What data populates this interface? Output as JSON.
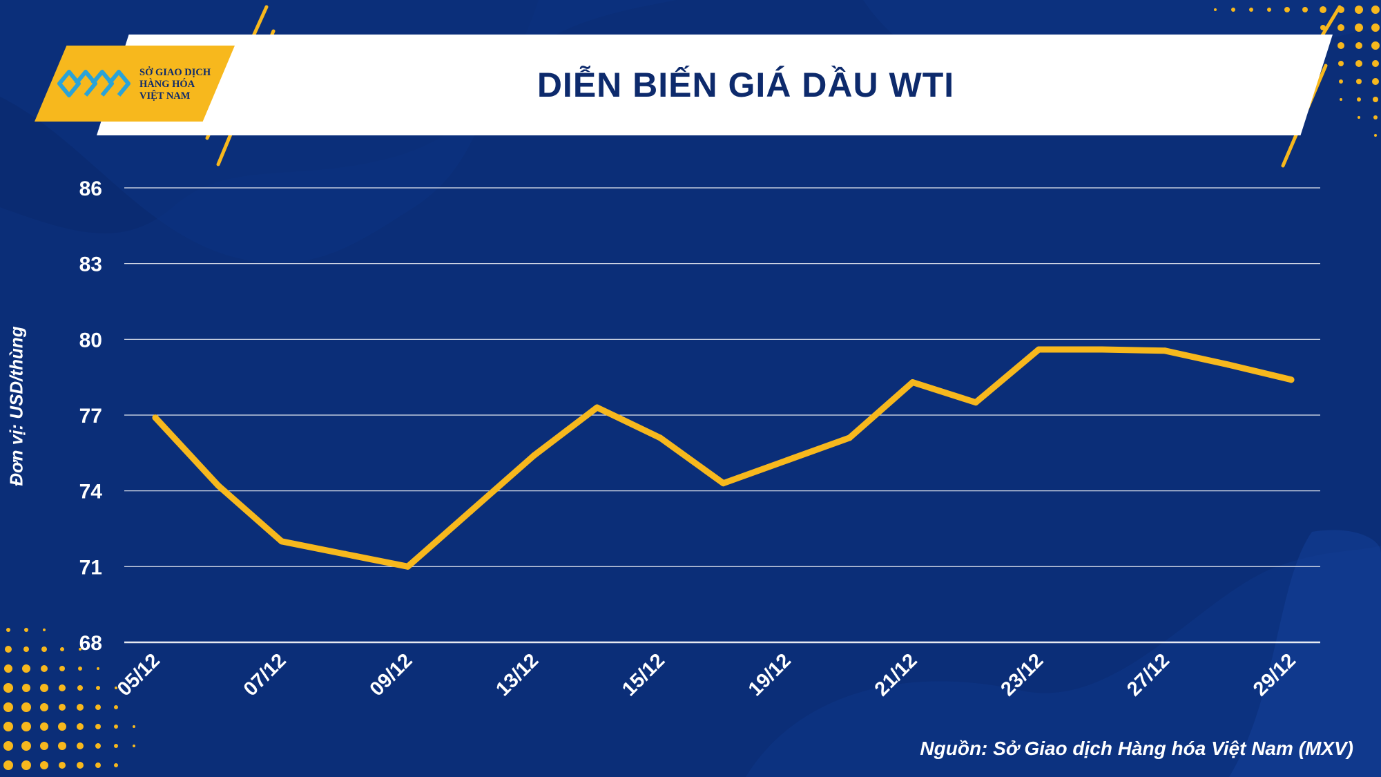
{
  "header": {
    "title": "DIỄN BIẾN GIÁ DẦU WTI",
    "logo_lines": [
      "SỞ GIAO DỊCH",
      "HÀNG HÓA",
      "VIỆT NAM"
    ]
  },
  "source_note": "Nguồn: Sở Giao dịch Hàng hóa Việt Nam (MXV)",
  "colors": {
    "background": "#0b2e78",
    "line": "#f7b81d",
    "accent": "#f7b81d",
    "text": "#ffffff",
    "title": "#0d2a6c"
  },
  "chart_data": {
    "type": "line",
    "title": "DIỄN BIẾN GIÁ DẦU WTI",
    "xlabel": "",
    "ylabel": "Đơn vị: USD/thùng",
    "ylim": [
      68,
      86
    ],
    "yticks": [
      86,
      83,
      80,
      77,
      74,
      71,
      68
    ],
    "x_tick_labels": [
      "05/12",
      "07/12",
      "09/12",
      "13/12",
      "15/12",
      "19/12",
      "21/12",
      "23/12",
      "27/12",
      "29/12"
    ],
    "grid": true,
    "legend": "none",
    "series": [
      {
        "points": [
          {
            "x": "05/12",
            "y": 76.9
          },
          {
            "x": "06/12",
            "y": 74.2
          },
          {
            "x": "07/12",
            "y": 72.0
          },
          {
            "x": "08/12",
            "y": 71.5
          },
          {
            "x": "09/12",
            "y": 71.0
          },
          {
            "x": "12/12",
            "y": 73.2
          },
          {
            "x": "13/12",
            "y": 75.4
          },
          {
            "x": "14/12",
            "y": 77.3
          },
          {
            "x": "15/12",
            "y": 76.1
          },
          {
            "x": "16/12",
            "y": 74.3
          },
          {
            "x": "19/12",
            "y": 75.2
          },
          {
            "x": "20/12",
            "y": 76.1
          },
          {
            "x": "21/12",
            "y": 78.3
          },
          {
            "x": "22/12",
            "y": 77.5
          },
          {
            "x": "23/12",
            "y": 79.6
          },
          {
            "x": "26/12",
            "y": 79.6
          },
          {
            "x": "27/12",
            "y": 79.55
          },
          {
            "x": "28/12",
            "y": 79.0
          },
          {
            "x": "29/12",
            "y": 78.4
          }
        ]
      }
    ]
  }
}
